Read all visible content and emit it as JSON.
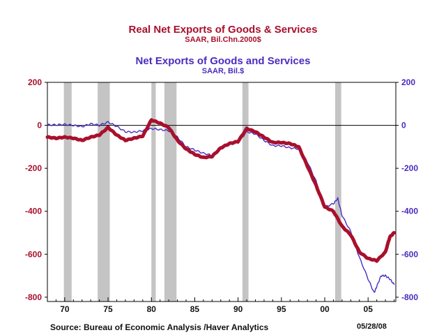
{
  "chart_data": {
    "type": "line",
    "title": "Real Net Exports of Goods & Services",
    "subtitle": "SAAR, Bil.Chn.2000$",
    "title2": "Net Exports of Goods and Services",
    "subtitle2": "SAAR, Bil.$",
    "xlim": [
      1968,
      2008.2
    ],
    "ylim": [
      -820,
      200
    ],
    "xticks": [
      1970,
      1975,
      1980,
      1985,
      1990,
      1995,
      2000,
      2005
    ],
    "xtick_labels": [
      "70",
      "75",
      "80",
      "85",
      "90",
      "95",
      "00",
      "05"
    ],
    "yticks": [
      -800,
      -600,
      -400,
      -200,
      0,
      200
    ],
    "ytick_labels_left": [
      "-800",
      "-600",
      "-400",
      "-200",
      "0",
      "200"
    ],
    "ytick_labels_right": [
      "-800",
      "-600",
      "-400",
      "-200",
      "0",
      "200"
    ],
    "recessions": [
      [
        1969.9,
        1970.8
      ],
      [
        1973.8,
        1975.2
      ],
      [
        1980.0,
        1980.5
      ],
      [
        1981.5,
        1982.9
      ],
      [
        1990.5,
        1991.2
      ],
      [
        2001.2,
        2001.9
      ]
    ],
    "series": [
      {
        "name": "Real Net Exports of Goods & Services",
        "axis": "left",
        "color": "#a8102c",
        "x": [
          1968,
          1969,
          1970,
          1971,
          1972,
          1973,
          1974,
          1975,
          1976,
          1977,
          1978,
          1979,
          1980,
          1981,
          1982,
          1983,
          1984,
          1985,
          1986,
          1987,
          1988,
          1989,
          1990,
          1991,
          1992,
          1993,
          1994,
          1995,
          1996,
          1997,
          1998,
          1999,
          2000,
          2001,
          2002,
          2003,
          2004,
          2005,
          2006,
          2007,
          2007.5,
          2008
        ],
        "y": [
          -55,
          -60,
          -55,
          -60,
          -70,
          -55,
          -45,
          -10,
          -45,
          -70,
          -60,
          -50,
          25,
          10,
          -10,
          -70,
          -110,
          -135,
          -150,
          -145,
          -105,
          -85,
          -75,
          -15,
          -30,
          -55,
          -80,
          -80,
          -85,
          -100,
          -190,
          -280,
          -380,
          -400,
          -470,
          -510,
          -590,
          -620,
          -630,
          -590,
          -520,
          -500
        ]
      },
      {
        "name": "Net Exports of Goods and Services",
        "axis": "right",
        "color": "#4a2cc0",
        "x": [
          1968,
          1969,
          1970,
          1971,
          1972,
          1973,
          1974,
          1975,
          1976,
          1977,
          1978,
          1979,
          1980,
          1981,
          1982,
          1983,
          1984,
          1985,
          1986,
          1987,
          1988,
          1989,
          1990,
          1991,
          1992,
          1993,
          1994,
          1995,
          1996,
          1997,
          1998,
          1999,
          2000,
          2001,
          2001.5,
          2002,
          2003,
          2004,
          2005,
          2005.7,
          2006,
          2006.5,
          2007,
          2007.5,
          2008
        ],
        "y": [
          2,
          2,
          4,
          0,
          -6,
          7,
          0,
          15,
          -5,
          -30,
          -32,
          -25,
          -15,
          -20,
          -25,
          -55,
          -100,
          -115,
          -130,
          -140,
          -110,
          -90,
          -80,
          -30,
          -40,
          -70,
          -95,
          -95,
          -105,
          -110,
          -170,
          -260,
          -380,
          -365,
          -340,
          -420,
          -495,
          -615,
          -715,
          -780,
          -750,
          -700,
          -700,
          -715,
          -740
        ]
      }
    ],
    "source": "Source:  Bureau of Economic Analysis /Haver Analytics",
    "date": "05/28/08"
  }
}
